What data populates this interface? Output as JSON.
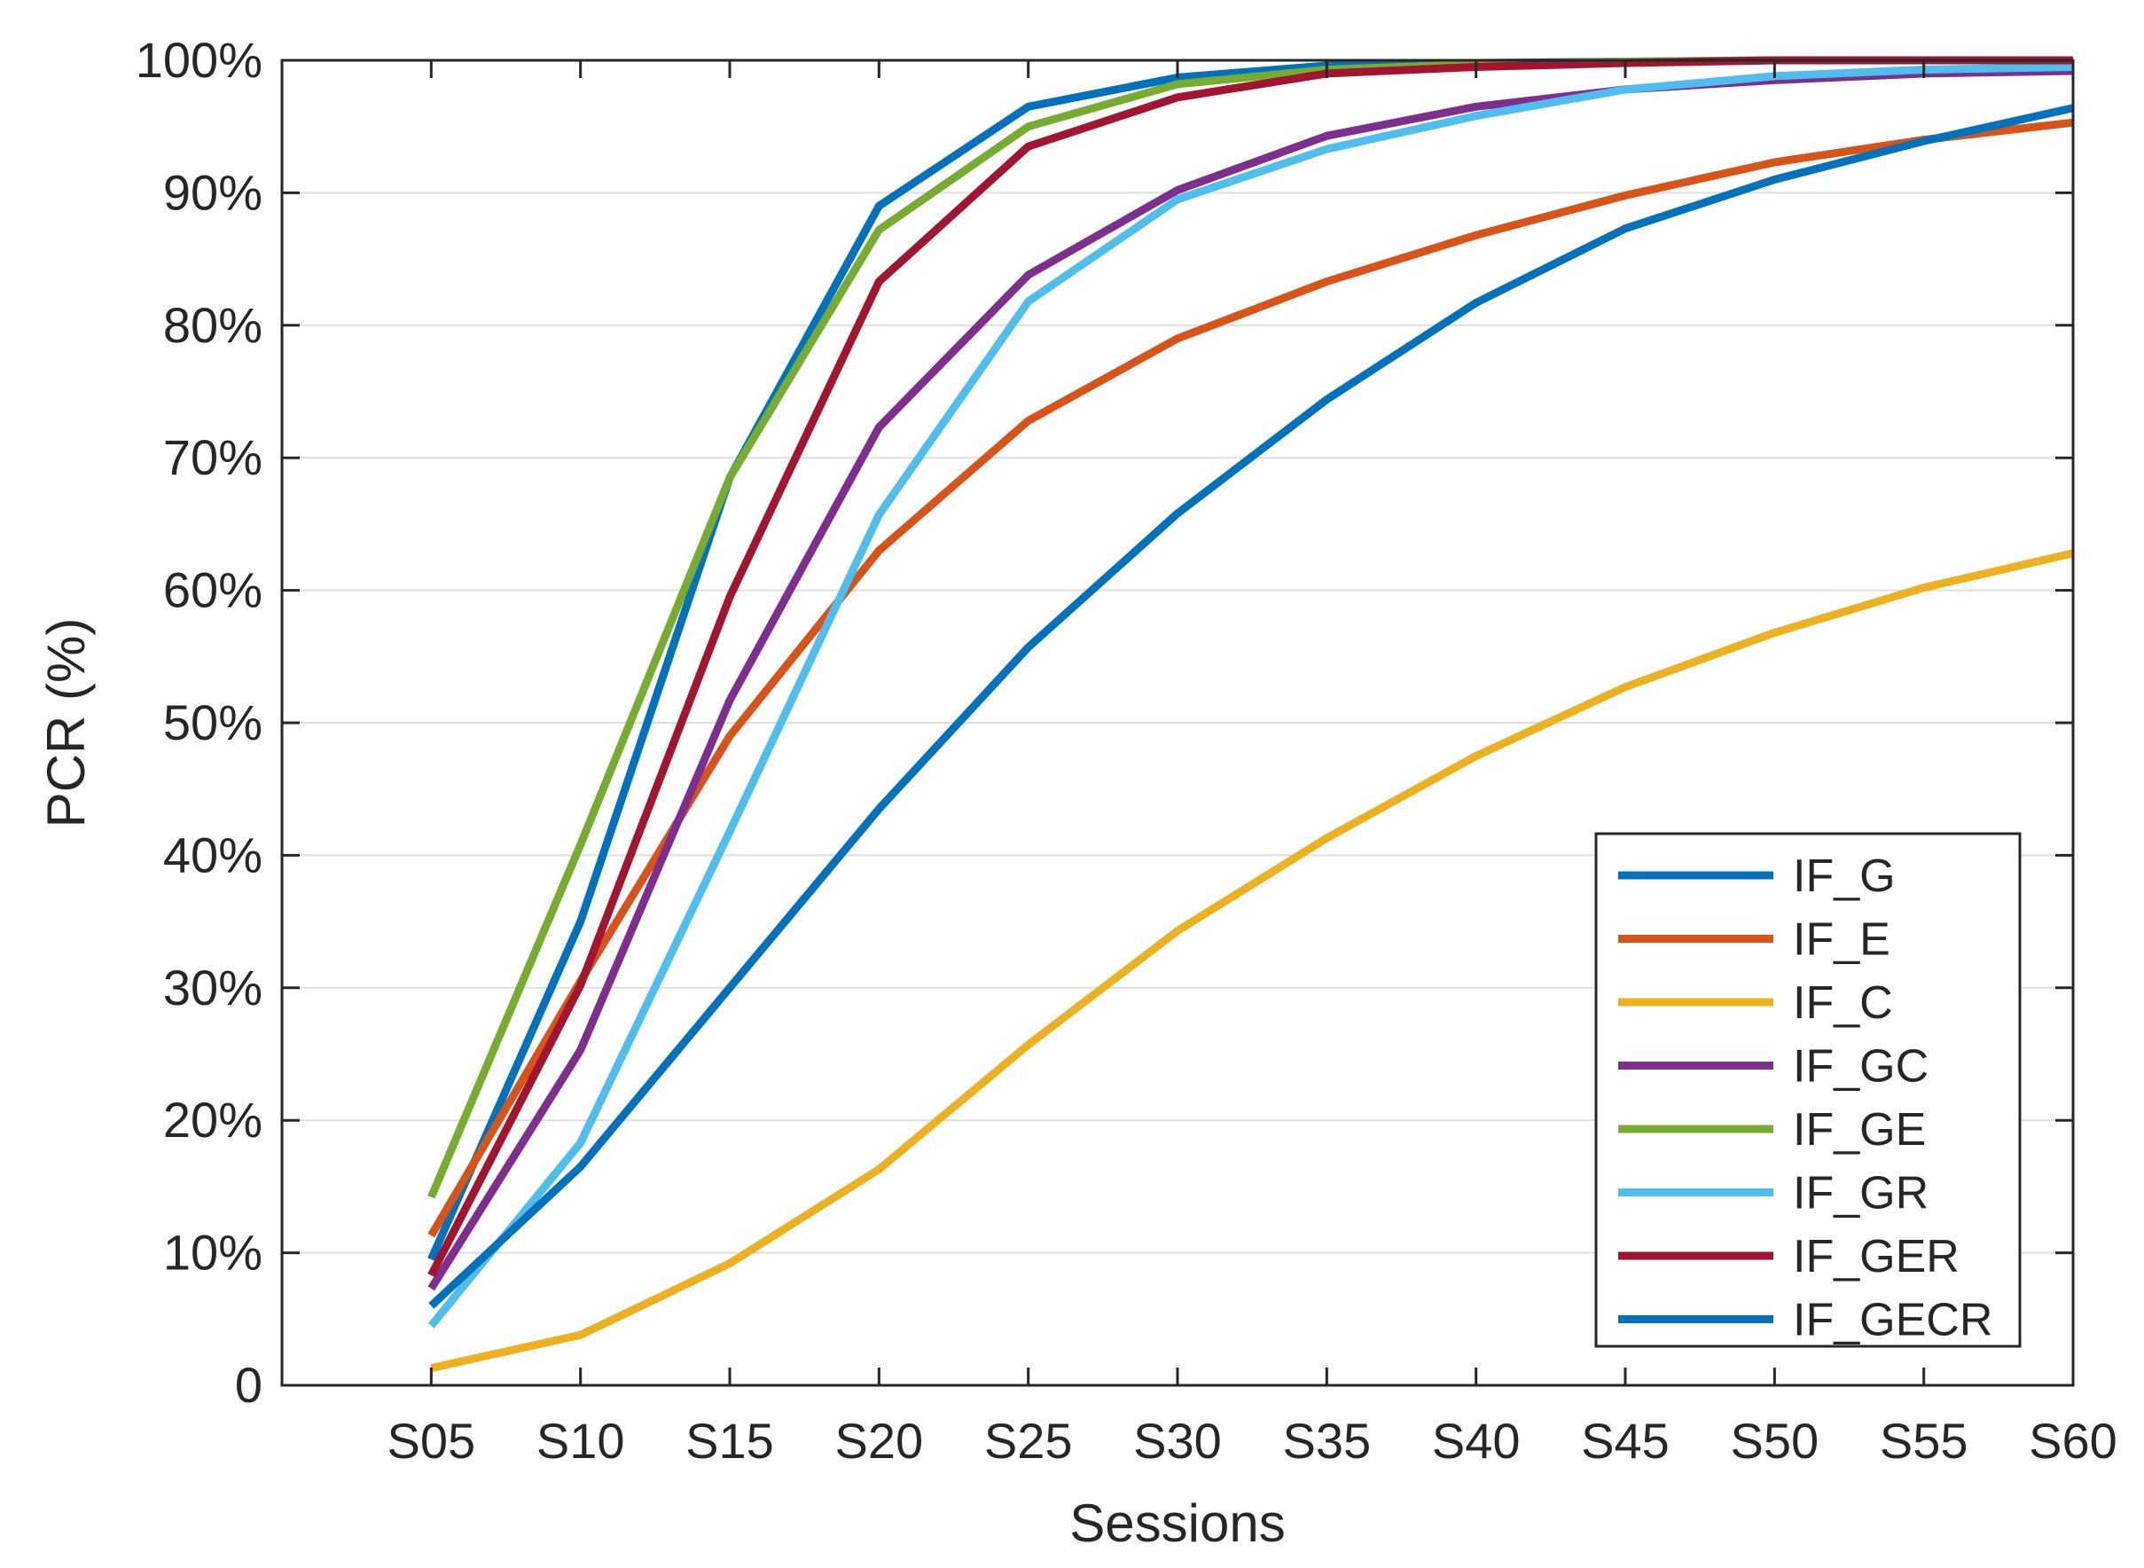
{
  "chart_data": {
    "type": "line",
    "title": "",
    "xlabel": "Sessions",
    "ylabel": "PCR (%)",
    "categories": [
      "S05",
      "S10",
      "S15",
      "S20",
      "S25",
      "S30",
      "S35",
      "S40",
      "S45",
      "S50",
      "S55",
      "S60"
    ],
    "ylim": [
      0,
      100
    ],
    "yticks": [
      0,
      10,
      20,
      30,
      40,
      50,
      60,
      70,
      80,
      90,
      100
    ],
    "ytick_labels": [
      "0",
      "10%",
      "20%",
      "30%",
      "40%",
      "50%",
      "60%",
      "70%",
      "80%",
      "90%",
      "100%"
    ],
    "grid": true,
    "legend_position": "bottom-right",
    "series": [
      {
        "name": "IF_G",
        "color": "#0072BD",
        "values": [
          9.5,
          35,
          68.5,
          89,
          96.5,
          98.7,
          99.6,
          99.8,
          99.9,
          100,
          100,
          100
        ]
      },
      {
        "name": "IF_E",
        "color": "#D95319",
        "values": [
          11.3,
          30.5,
          49,
          63,
          72.8,
          79,
          83.3,
          86.8,
          89.8,
          92.3,
          94,
          95.3
        ]
      },
      {
        "name": "IF_C",
        "color": "#EDB120",
        "values": [
          1.3,
          3.8,
          9.2,
          16.3,
          25.7,
          34.3,
          41.3,
          47.5,
          52.7,
          56.8,
          60.2,
          62.8
        ]
      },
      {
        "name": "IF_GC",
        "color": "#7E2F8E",
        "values": [
          7.3,
          25.3,
          51.7,
          72.3,
          83.8,
          90.2,
          94.3,
          96.5,
          97.8,
          98.5,
          99,
          99.2
        ]
      },
      {
        "name": "IF_GE",
        "color": "#77AC30",
        "values": [
          14.2,
          40.8,
          68.5,
          87.2,
          95,
          98.2,
          99.3,
          99.7,
          99.9,
          100,
          100,
          100
        ]
      },
      {
        "name": "IF_GR",
        "color": "#4DBEEE",
        "values": [
          4.5,
          18.3,
          41.8,
          65.7,
          81.8,
          89.5,
          93.3,
          95.8,
          97.8,
          98.8,
          99.3,
          99.5
        ]
      },
      {
        "name": "IF_GER",
        "color": "#A2142F",
        "values": [
          8.3,
          30.2,
          59.5,
          83.3,
          93.5,
          97.2,
          99,
          99.5,
          99.8,
          100,
          100,
          100
        ]
      },
      {
        "name": "IF_GECR",
        "color": "#0072BD",
        "values": [
          6,
          16.5,
          30,
          43.5,
          55.7,
          65.8,
          74.4,
          81.7,
          87.3,
          91,
          93.9,
          96.4
        ]
      }
    ]
  }
}
